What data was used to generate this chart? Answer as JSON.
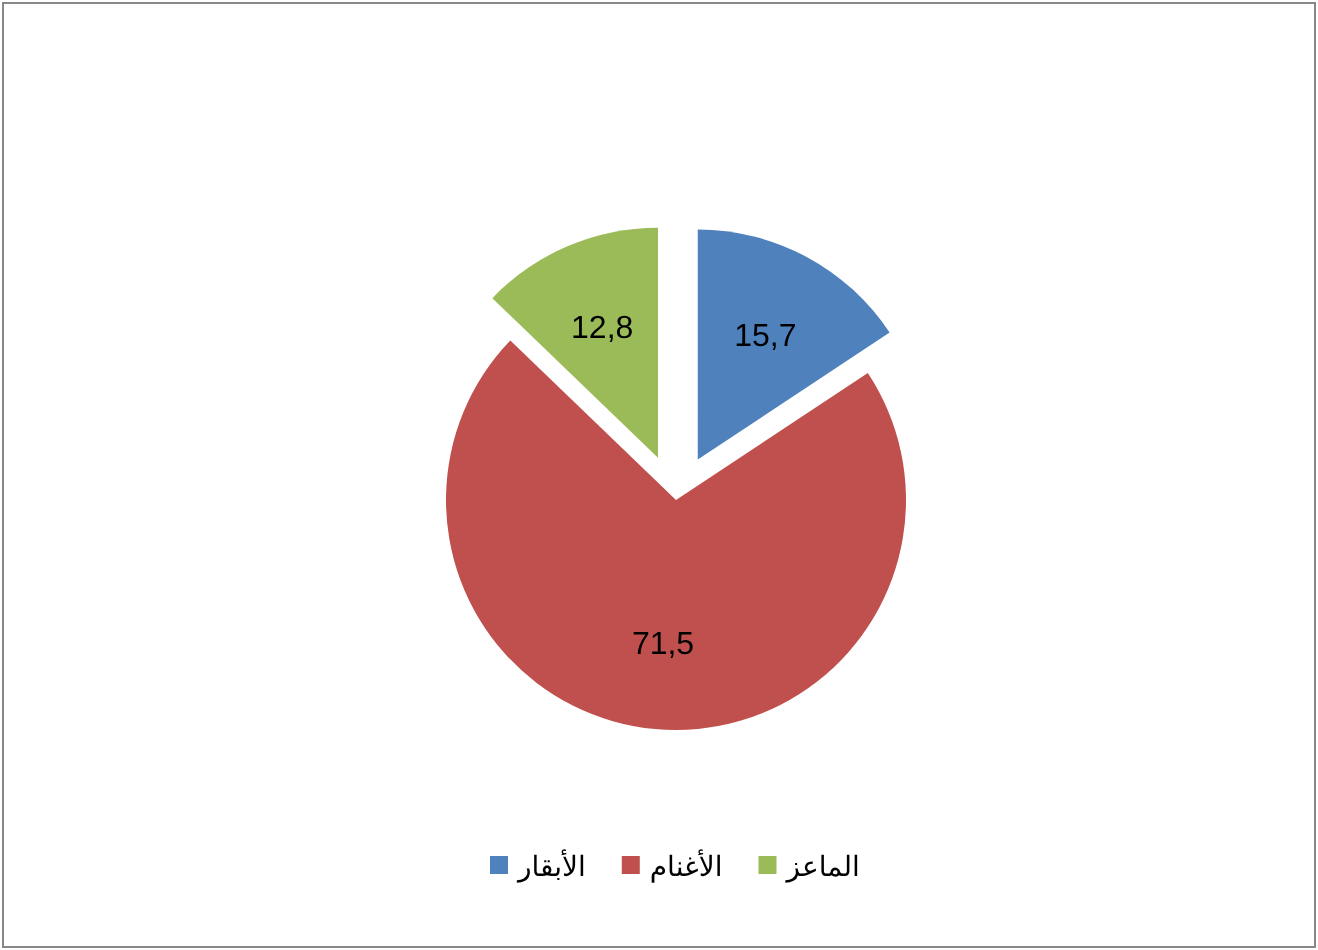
{
  "chart_data": {
    "type": "pie",
    "categories": [
      "الأبقار",
      "الأغنام",
      "الماعز"
    ],
    "values": [
      15.7,
      71.5,
      12.8
    ],
    "colors": [
      "#4f81bd",
      "#c0504d",
      "#9bbb59"
    ],
    "value_labels": [
      "15,7",
      "71,5",
      "12,8"
    ],
    "legend": "bottom"
  }
}
